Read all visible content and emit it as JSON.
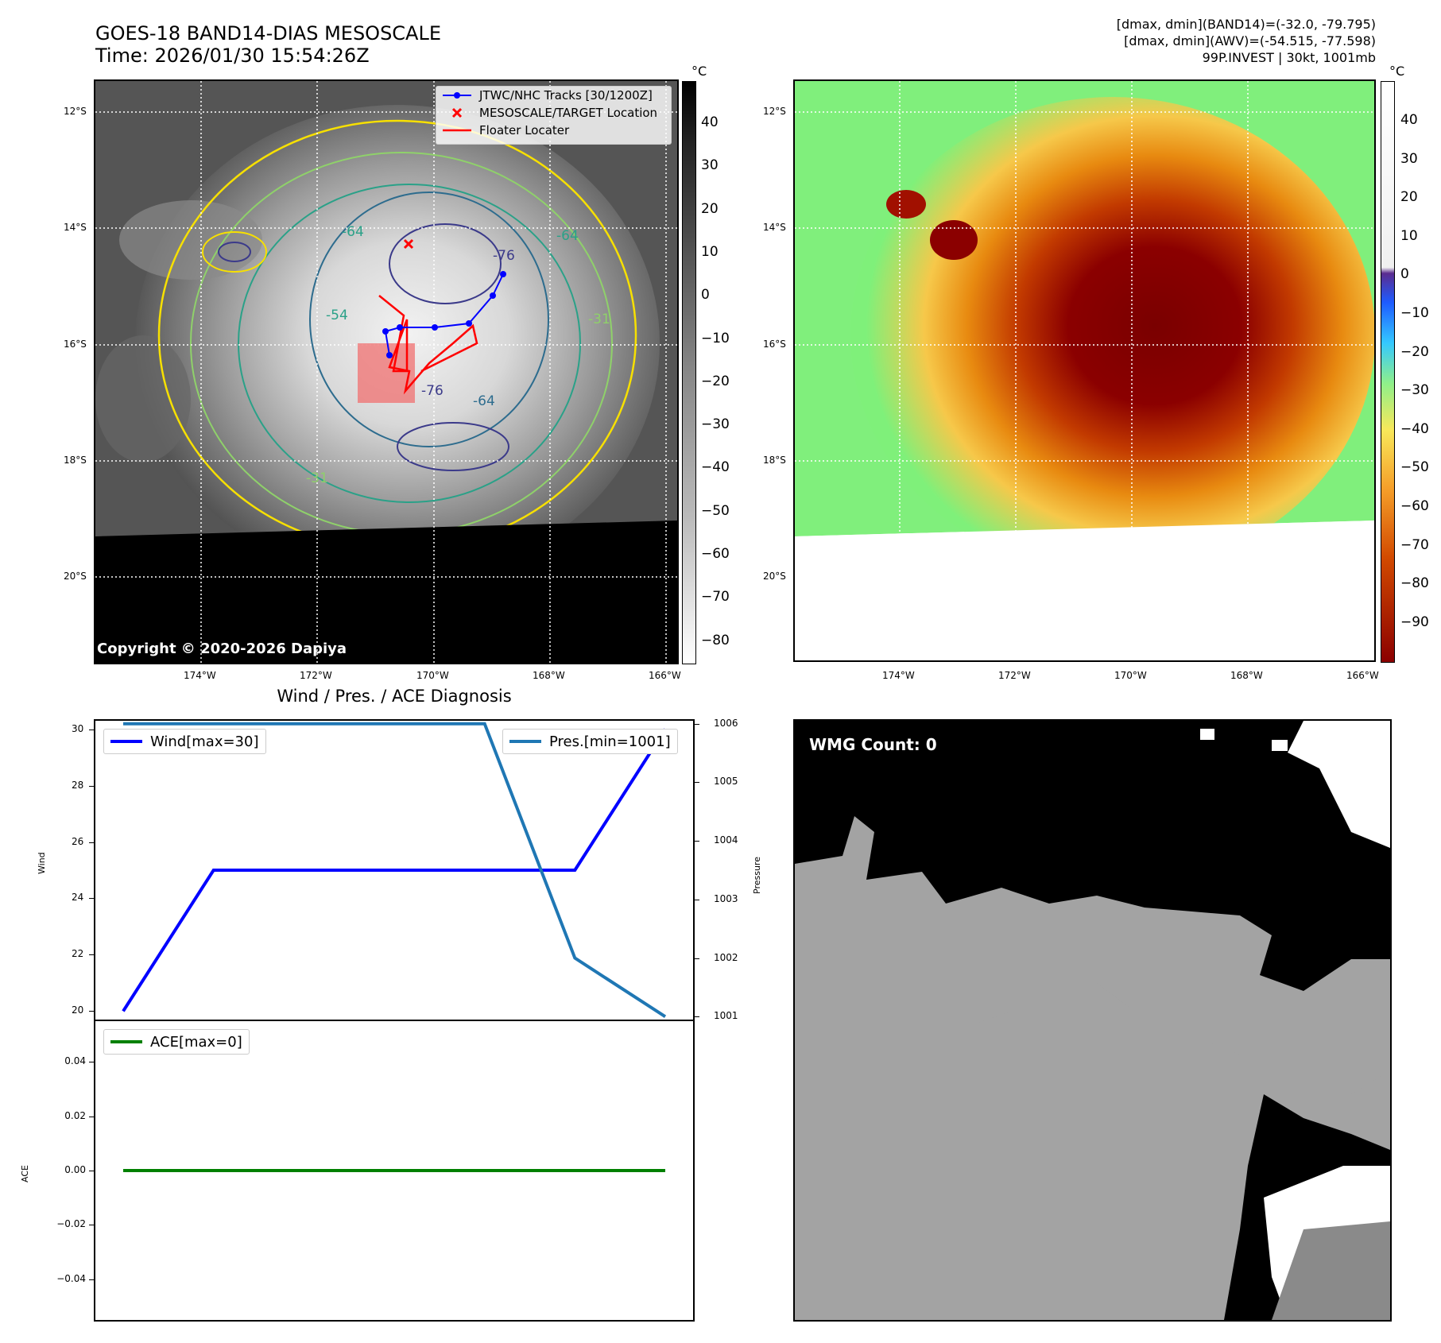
{
  "header": {
    "title_line1": "GOES-18 BAND14-DIAS MESOSCALE",
    "title_line2": "Time: 2026/01/30 15:54:26Z",
    "stats_line1": "[dmax, dmin](BAND14)=(-32.0, -79.795)",
    "stats_line2": "[dmax, dmin](AWV)=(-54.515, -77.598)",
    "stats_line3": "99P.INVEST | 30kt, 1001mb"
  },
  "map": {
    "lat_labels": [
      "12°S",
      "14°S",
      "16°S",
      "18°S",
      "20°S"
    ],
    "lon_labels": [
      "174°W",
      "172°W",
      "170°W",
      "168°W",
      "166°W"
    ],
    "copyright": "Copyright © 2020-2026 Dapiya",
    "contour_labels": [
      "-76",
      "-64",
      "-76",
      "-64",
      "-64",
      "-31",
      "-54",
      "-31"
    ],
    "legend": {
      "tracks": "JTWC/NHC Tracks [30/1200Z]",
      "target": "MESOSCALE/TARGET Location",
      "floater": "Floater Locater"
    }
  },
  "colorbar_left": {
    "unit": "°C",
    "ticks": [
      "40",
      "30",
      "20",
      "10",
      "0",
      "−10",
      "−20",
      "−30",
      "−40",
      "−50",
      "−60",
      "−70",
      "−80"
    ]
  },
  "colorbar_right": {
    "unit": "°C",
    "ticks": [
      "40",
      "30",
      "20",
      "10",
      "0",
      "−10",
      "−20",
      "−30",
      "−40",
      "−50",
      "−60",
      "−70",
      "−80",
      "−90"
    ]
  },
  "diagnosis": {
    "title": "Wind / Pres. / ACE Diagnosis"
  },
  "wmg": {
    "label": "WMG Count: 0"
  },
  "chart_data": [
    {
      "type": "line",
      "title": "Wind / Pres. / ACE Diagnosis",
      "ylabel": "Wind",
      "y2label": "Pressure",
      "ylim": [
        19.7,
        30.3
      ],
      "y2lim": [
        1000.95,
        1006.05
      ],
      "yticks": [
        "20",
        "22",
        "24",
        "26",
        "28",
        "30"
      ],
      "y2ticks": [
        "1001",
        "1002",
        "1003",
        "1004",
        "1005",
        "1006"
      ],
      "x": [
        0,
        1,
        2,
        3,
        4,
        5,
        6
      ],
      "series": [
        {
          "name": "Wind[max=30]",
          "axis": "left",
          "color": "#0000ff",
          "values": [
            20,
            25,
            25,
            25,
            25,
            25,
            30
          ]
        },
        {
          "name": "Pres.[min=1001]",
          "axis": "right",
          "color": "#1f77b4",
          "values": [
            1006,
            1006,
            1006,
            1006,
            1006,
            1002,
            1001
          ]
        }
      ]
    },
    {
      "type": "line",
      "ylabel": "ACE",
      "ylim": [
        -0.055,
        0.055
      ],
      "yticks": [
        "0.04",
        "0.02",
        "0.00",
        "−0.02",
        "−0.04"
      ],
      "x": [
        0,
        1,
        2,
        3,
        4,
        5,
        6
      ],
      "series": [
        {
          "name": "ACE[max=0]",
          "color": "#008000",
          "values": [
            0,
            0,
            0,
            0,
            0,
            0,
            0
          ]
        }
      ]
    }
  ]
}
